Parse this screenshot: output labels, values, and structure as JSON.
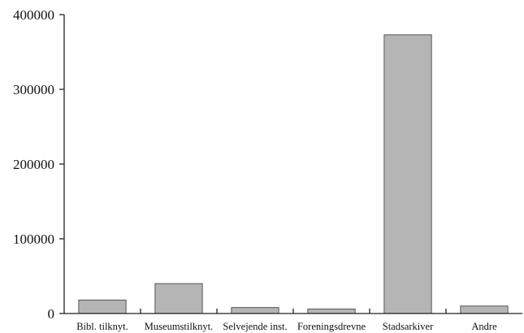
{
  "chart_data": {
    "type": "bar",
    "categories": [
      "Bibl. tilknyt.",
      "Museumstilknyt.",
      "Selvejende inst.",
      "Foreningsdrevne",
      "Stadsarkiver",
      "Andre"
    ],
    "values": [
      18000,
      40000,
      8000,
      6000,
      373000,
      10000
    ],
    "yticks": [
      0,
      100000,
      200000,
      300000,
      400000
    ],
    "ylim": [
      0,
      400000
    ],
    "bar_color": "#b5b5b5",
    "grid": false,
    "legend": "none",
    "title": "",
    "xlabel": "",
    "ylabel": ""
  }
}
